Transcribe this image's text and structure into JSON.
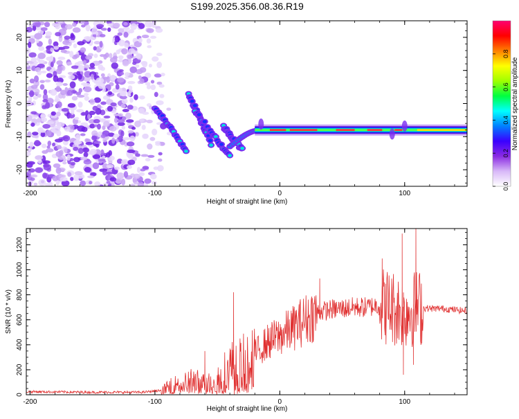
{
  "title": "S199.2025.356.08.36.R19",
  "chart_data": [
    {
      "type": "heatmap",
      "panel": "spectrogram",
      "xlabel": "Height of straight line (km)",
      "ylabel": "Frequency (Hz)",
      "xlim": [
        -203,
        150
      ],
      "ylim": [
        -25,
        25
      ],
      "x_ticks": [
        -200,
        -100,
        0,
        100
      ],
      "y_ticks": [
        -20,
        -10,
        0,
        10,
        20
      ],
      "colorbar": {
        "label": "Normalized spectral amplitude",
        "range": [
          0,
          1
        ],
        "ticks": [
          0.0,
          0.2,
          0.4,
          0.6,
          0.8
        ],
        "tick_labels": [
          "0.0",
          "0.2",
          "0.4",
          "0.6",
          "0.8"
        ],
        "colors": [
          "#ffffff",
          "#d8b8f8",
          "#8a2be2",
          "#3a00ff",
          "#0080ff",
          "#00ffff",
          "#00ff40",
          "#a0ff00",
          "#ffff00",
          "#ff8000",
          "#ff0000",
          "#ff0070"
        ]
      },
      "features": {
        "noise_region_x": [
          -203,
          -93
        ],
        "noise_freq_range": [
          -25,
          25
        ],
        "descending_streaks": [
          {
            "x": [
              -100,
              -75
            ],
            "freq": [
              -1,
              -14
            ]
          },
          {
            "x": [
              -73,
              -55
            ],
            "freq": [
              3,
              -12
            ]
          },
          {
            "x": [
              -68,
              -40
            ],
            "freq": [
              -2,
              -16
            ]
          },
          {
            "x": [
              -45,
              -30
            ],
            "freq": [
              -7,
              -14
            ]
          }
        ],
        "steady_line": {
          "x": [
            -20,
            150
          ],
          "freq": -8.0,
          "peak_amplitude": 0.95
        }
      }
    },
    {
      "type": "line",
      "panel": "snr",
      "xlabel": "Height of straight line (km)",
      "ylabel": "SNR (10 * v/v)",
      "xlim": [
        -203,
        150
      ],
      "ylim": [
        0,
        1330
      ],
      "x_ticks": [
        -200,
        -100,
        0,
        100
      ],
      "y_ticks": [
        0,
        200,
        400,
        600,
        800,
        1000,
        1200
      ],
      "series": [
        {
          "name": "SNR",
          "color": "#e03030",
          "envelope_x": [
            -203,
            -150,
            -110,
            -95,
            -85,
            -70,
            -60,
            -50,
            -40,
            -30,
            -20,
            -10,
            0,
            10,
            20,
            30,
            40,
            50,
            60,
            70,
            80,
            90,
            100,
            110,
            120,
            130,
            140,
            150
          ],
          "envelope_y": [
            25,
            20,
            20,
            35,
            80,
            120,
            90,
            130,
            230,
            250,
            330,
            420,
            470,
            530,
            600,
            660,
            680,
            690,
            700,
            700,
            720,
            700,
            660,
            700,
            690,
            690,
            680,
            670
          ],
          "spikes": [
            {
              "x": -60,
              "y": 350
            },
            {
              "x": -37,
              "y": 820
            },
            {
              "x": 32,
              "y": 930
            },
            {
              "x": 82,
              "y": 1090
            },
            {
              "x": 98,
              "y": 1290
            },
            {
              "x": 99,
              "y": 160
            },
            {
              "x": 109,
              "y": 1330
            },
            {
              "x": 107,
              "y": 240
            }
          ]
        }
      ]
    }
  ]
}
